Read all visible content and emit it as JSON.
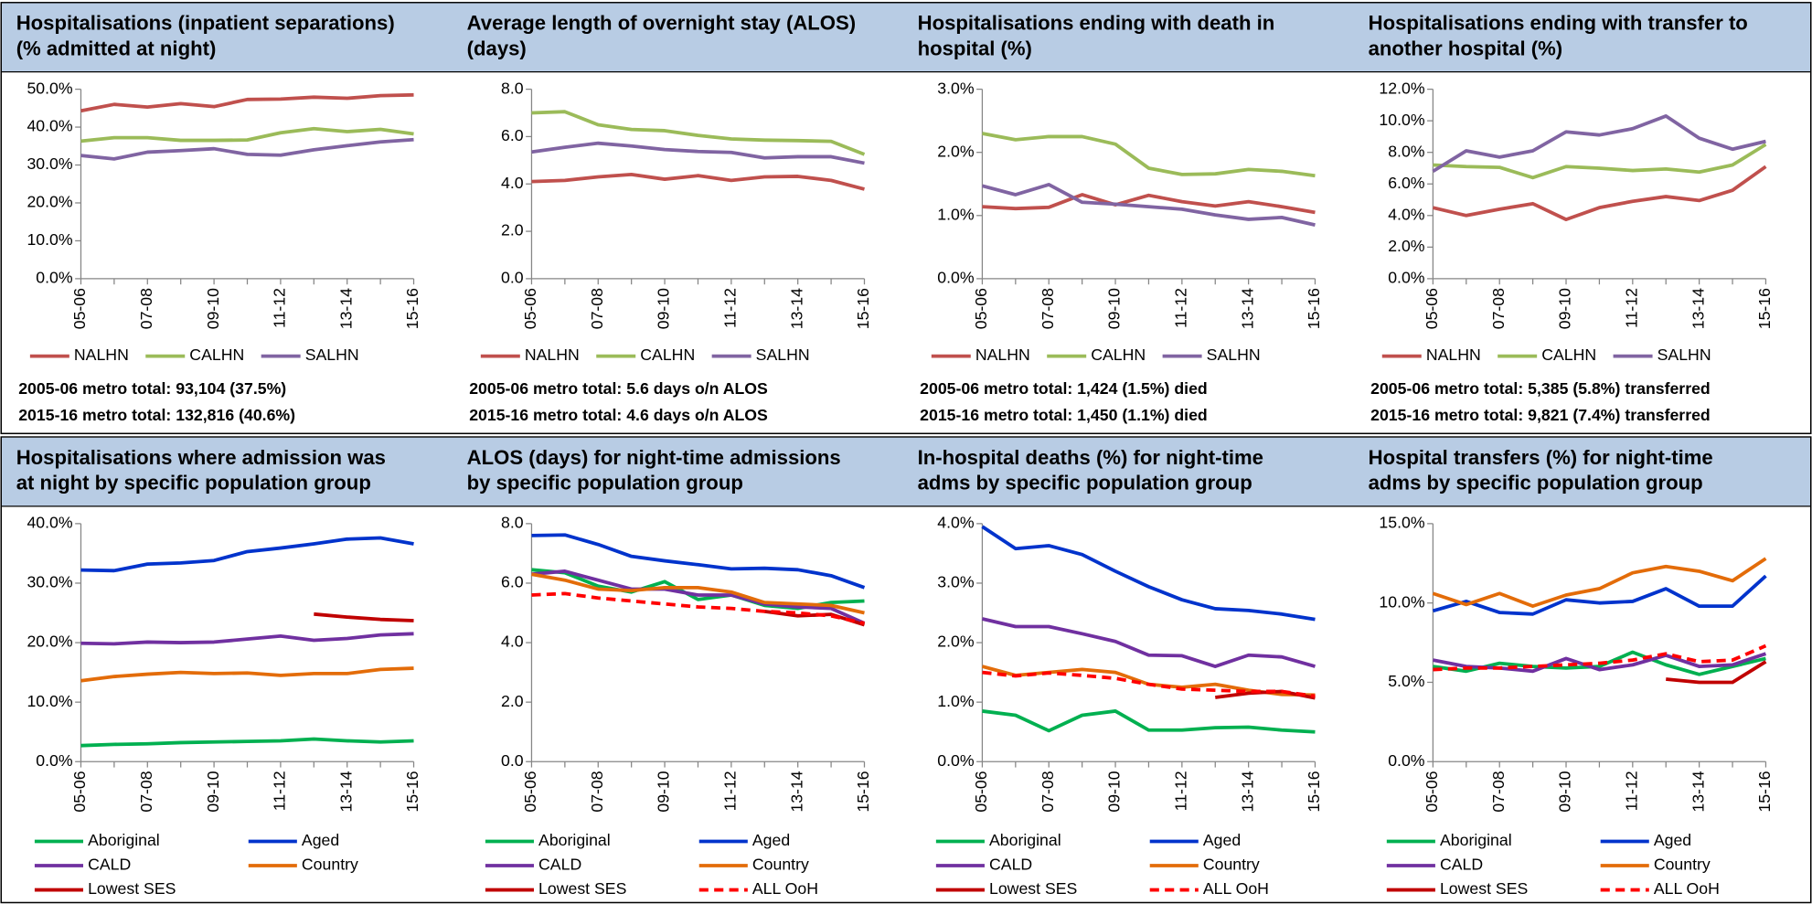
{
  "chart_data": [
    {
      "type": "line",
      "title": [
        "Hospitalisations (inpatient separations)",
        "(% admitted at night)"
      ],
      "categories": [
        "05-06",
        null,
        "07-08",
        null,
        "09-10",
        null,
        "11-12",
        null,
        "13-14",
        null,
        "15-16"
      ],
      "series": [
        {
          "name": "NALHN",
          "color": "#c0504d",
          "values": [
            44.3,
            46.0,
            45.3,
            46.2,
            45.4,
            47.3,
            47.4,
            47.9,
            47.6,
            48.3,
            48.5
          ]
        },
        {
          "name": "CALHN",
          "color": "#9bbb59",
          "values": [
            36.3,
            37.2,
            37.2,
            36.5,
            36.5,
            36.6,
            38.5,
            39.6,
            38.8,
            39.4,
            38.2
          ]
        },
        {
          "name": "SALHN",
          "color": "#8064a2",
          "values": [
            32.5,
            31.6,
            33.4,
            33.8,
            34.3,
            32.8,
            32.6,
            34.0,
            35.1,
            36.1,
            36.7
          ]
        }
      ],
      "ylim": [
        0,
        50
      ],
      "yticks": [
        {
          "value": 0,
          "label": "0.0%"
        },
        {
          "value": 10,
          "label": "10.0%"
        },
        {
          "value": 20,
          "label": "20.0%"
        },
        {
          "value": 30,
          "label": "30.0%"
        },
        {
          "value": 40,
          "label": "40.0%"
        },
        {
          "value": 50,
          "label": "50.0%"
        }
      ],
      "legend": "bottom",
      "notes": [
        "2005-06 metro total: 93,104 (37.5%)",
        "2015-16 metro total: 132,816 (40.6%)"
      ]
    },
    {
      "type": "line",
      "title": [
        "Average length of overnight stay (ALOS)",
        "(days)"
      ],
      "categories": [
        "05-06",
        null,
        "07-08",
        null,
        "09-10",
        null,
        "11-12",
        null,
        "13-14",
        null,
        "15-16"
      ],
      "series": [
        {
          "name": "NALHN",
          "color": "#c0504d",
          "values": [
            4.1,
            4.15,
            4.3,
            4.4,
            4.2,
            4.35,
            4.15,
            4.3,
            4.32,
            4.15,
            3.78
          ]
        },
        {
          "name": "CALHN",
          "color": "#9bbb59",
          "values": [
            7.0,
            7.05,
            6.5,
            6.3,
            6.25,
            6.05,
            5.9,
            5.85,
            5.83,
            5.8,
            5.25
          ]
        },
        {
          "name": "SALHN",
          "color": "#8064a2",
          "values": [
            5.35,
            5.55,
            5.72,
            5.6,
            5.45,
            5.37,
            5.33,
            5.1,
            5.15,
            5.15,
            4.88
          ]
        }
      ],
      "ylim": [
        0,
        8
      ],
      "yticks": [
        {
          "value": 0,
          "label": "0.0"
        },
        {
          "value": 2,
          "label": "2.0"
        },
        {
          "value": 4,
          "label": "4.0"
        },
        {
          "value": 6,
          "label": "6.0"
        },
        {
          "value": 8,
          "label": "8.0"
        }
      ],
      "legend": "bottom",
      "notes": [
        "2005-06 metro total: 5.6 days o/n ALOS",
        "2015-16 metro total: 4.6 days o/n ALOS"
      ]
    },
    {
      "type": "line",
      "title": [
        "Hospitalisations ending with death in",
        "hospital (%)"
      ],
      "categories": [
        "05-06",
        null,
        "07-08",
        null,
        "09-10",
        null,
        "11-12",
        null,
        "13-14",
        null,
        "15-16"
      ],
      "series": [
        {
          "name": "NALHN",
          "color": "#c0504d",
          "values": [
            1.14,
            1.11,
            1.13,
            1.33,
            1.17,
            1.32,
            1.22,
            1.15,
            1.22,
            1.14,
            1.05
          ]
        },
        {
          "name": "CALHN",
          "color": "#9bbb59",
          "values": [
            2.3,
            2.2,
            2.25,
            2.25,
            2.13,
            1.75,
            1.65,
            1.66,
            1.73,
            1.7,
            1.63
          ]
        },
        {
          "name": "SALHN",
          "color": "#8064a2",
          "values": [
            1.47,
            1.33,
            1.49,
            1.21,
            1.18,
            1.14,
            1.1,
            1.01,
            0.94,
            0.97,
            0.85
          ]
        }
      ],
      "ylim": [
        0,
        3
      ],
      "yticks": [
        {
          "value": 0,
          "label": "0.0%"
        },
        {
          "value": 1,
          "label": "1.0%"
        },
        {
          "value": 2,
          "label": "2.0%"
        },
        {
          "value": 3,
          "label": "3.0%"
        }
      ],
      "legend": "bottom",
      "notes": [
        "2005-06 metro total: 1,424 (1.5%) died",
        "2015-16 metro total: 1,450 (1.1%) died"
      ]
    },
    {
      "type": "line",
      "title": [
        "Hospitalisations ending with transfer to",
        "another hospital (%)"
      ],
      "categories": [
        "05-06",
        null,
        "07-08",
        null,
        "09-10",
        null,
        "11-12",
        null,
        "13-14",
        null,
        "15-16"
      ],
      "series": [
        {
          "name": "NALHN",
          "color": "#c0504d",
          "values": [
            4.5,
            4.0,
            4.4,
            4.75,
            3.75,
            4.5,
            4.9,
            5.2,
            4.95,
            5.6,
            7.1
          ]
        },
        {
          "name": "CALHN",
          "color": "#9bbb59",
          "values": [
            7.2,
            7.1,
            7.05,
            6.4,
            7.1,
            7.0,
            6.85,
            6.95,
            6.75,
            7.2,
            8.5
          ]
        },
        {
          "name": "SALHN",
          "color": "#8064a2",
          "values": [
            6.8,
            8.1,
            7.7,
            8.1,
            9.3,
            9.1,
            9.5,
            10.3,
            8.9,
            8.2,
            8.7
          ]
        }
      ],
      "ylim": [
        0,
        12
      ],
      "yticks": [
        {
          "value": 0,
          "label": "0.0%"
        },
        {
          "value": 2,
          "label": "2.0%"
        },
        {
          "value": 4,
          "label": "4.0%"
        },
        {
          "value": 6,
          "label": "6.0%"
        },
        {
          "value": 8,
          "label": "8.0%"
        },
        {
          "value": 10,
          "label": "10.0%"
        },
        {
          "value": 12,
          "label": "12.0%"
        }
      ],
      "legend": "bottom",
      "notes": [
        "2005-06 metro total: 5,385 (5.8%) transferred",
        "2015-16 metro total: 9,821 (7.4%) transferred"
      ]
    },
    {
      "type": "line",
      "title": [
        "Hospitalisations where admission was",
        "at night by specific population group"
      ],
      "categories": [
        "05-06",
        null,
        "07-08",
        null,
        "09-10",
        null,
        "11-12",
        null,
        "13-14",
        null,
        "15-16"
      ],
      "series": [
        {
          "name": "Aboriginal",
          "color": "#00b050",
          "values": [
            2.7,
            2.9,
            3.0,
            3.2,
            3.3,
            3.4,
            3.5,
            3.8,
            3.5,
            3.3,
            3.5
          ]
        },
        {
          "name": "Aged",
          "color": "#0033cc",
          "values": [
            32.2,
            32.1,
            33.2,
            33.4,
            33.8,
            35.3,
            35.9,
            36.6,
            37.4,
            37.6,
            36.6
          ]
        },
        {
          "name": "CALD",
          "color": "#7030a0",
          "values": [
            19.9,
            19.8,
            20.1,
            20.0,
            20.1,
            20.6,
            21.1,
            20.4,
            20.7,
            21.3,
            21.5
          ]
        },
        {
          "name": "Country",
          "color": "#e36c09",
          "values": [
            13.6,
            14.3,
            14.7,
            15.0,
            14.8,
            14.9,
            14.5,
            14.8,
            14.8,
            15.5,
            15.7
          ]
        },
        {
          "name": "Lowest SES",
          "color": "#c00000",
          "values": [
            null,
            null,
            null,
            null,
            null,
            null,
            null,
            24.8,
            24.3,
            23.9,
            23.7
          ]
        }
      ],
      "ylim": [
        0,
        40
      ],
      "yticks": [
        {
          "value": 0,
          "label": "0.0%"
        },
        {
          "value": 10,
          "label": "10.0%"
        },
        {
          "value": 20,
          "label": "20.0%"
        },
        {
          "value": 30,
          "label": "30.0%"
        },
        {
          "value": 40,
          "label": "40.0%"
        }
      ],
      "legend": "bottom"
    },
    {
      "type": "line",
      "title": [
        "ALOS (days) for night-time admissions",
        "by specific population group"
      ],
      "categories": [
        "05-06",
        null,
        "07-08",
        null,
        "09-10",
        null,
        "11-12",
        null,
        "13-14",
        null,
        "15-16"
      ],
      "series": [
        {
          "name": "Aboriginal",
          "color": "#00b050",
          "values": [
            6.45,
            6.35,
            5.9,
            5.7,
            6.05,
            5.45,
            5.6,
            5.25,
            5.15,
            5.35,
            5.4
          ]
        },
        {
          "name": "Aged",
          "color": "#0033cc",
          "values": [
            7.6,
            7.62,
            7.3,
            6.9,
            6.75,
            6.62,
            6.48,
            6.5,
            6.45,
            6.25,
            5.85
          ]
        },
        {
          "name": "CALD",
          "color": "#7030a0",
          "values": [
            6.3,
            6.4,
            6.1,
            5.8,
            5.8,
            5.6,
            5.6,
            5.3,
            5.2,
            5.15,
            4.65
          ]
        },
        {
          "name": "Country",
          "color": "#e36c09",
          "values": [
            6.3,
            6.1,
            5.8,
            5.75,
            5.85,
            5.85,
            5.7,
            5.35,
            5.3,
            5.25,
            5.0
          ]
        },
        {
          "name": "Lowest SES",
          "color": "#c00000",
          "values": [
            null,
            null,
            null,
            null,
            null,
            null,
            null,
            5.05,
            4.9,
            4.95,
            4.6
          ]
        },
        {
          "name": "ALL OoH",
          "color": "#ff0000",
          "dashed": true,
          "values": [
            5.6,
            5.65,
            5.5,
            5.4,
            5.3,
            5.2,
            5.15,
            5.05,
            5.0,
            4.9,
            4.65
          ]
        }
      ],
      "ylim": [
        0,
        8
      ],
      "yticks": [
        {
          "value": 0,
          "label": "0.0"
        },
        {
          "value": 2,
          "label": "2.0"
        },
        {
          "value": 4,
          "label": "4.0"
        },
        {
          "value": 6,
          "label": "6.0"
        },
        {
          "value": 8,
          "label": "8.0"
        }
      ],
      "legend": "bottom"
    },
    {
      "type": "line",
      "title": [
        "In-hospital deaths (%) for night-time",
        "adms by specific population group"
      ],
      "categories": [
        "05-06",
        null,
        "07-08",
        null,
        "09-10",
        null,
        "11-12",
        null,
        "13-14",
        null,
        "15-16"
      ],
      "series": [
        {
          "name": "Aboriginal",
          "color": "#00b050",
          "values": [
            0.85,
            0.78,
            0.52,
            0.78,
            0.85,
            0.53,
            0.53,
            0.57,
            0.58,
            0.53,
            0.5
          ]
        },
        {
          "name": "Aged",
          "color": "#0033cc",
          "values": [
            3.95,
            3.58,
            3.63,
            3.48,
            3.2,
            2.94,
            2.72,
            2.57,
            2.54,
            2.48,
            2.39
          ]
        },
        {
          "name": "CALD",
          "color": "#7030a0",
          "values": [
            2.4,
            2.27,
            2.27,
            2.15,
            2.02,
            1.79,
            1.78,
            1.6,
            1.79,
            1.76,
            1.6
          ]
        },
        {
          "name": "Country",
          "color": "#e36c09",
          "values": [
            1.6,
            1.45,
            1.5,
            1.55,
            1.5,
            1.3,
            1.25,
            1.3,
            1.2,
            1.13,
            1.12
          ]
        },
        {
          "name": "Lowest SES",
          "color": "#c00000",
          "values": [
            null,
            null,
            null,
            null,
            null,
            null,
            null,
            1.08,
            1.15,
            1.18,
            1.07
          ]
        },
        {
          "name": "ALL OoH",
          "color": "#ff0000",
          "dashed": true,
          "values": [
            1.5,
            1.44,
            1.49,
            1.45,
            1.4,
            1.3,
            1.22,
            1.2,
            1.18,
            1.18,
            1.1
          ]
        }
      ],
      "ylim": [
        0,
        4
      ],
      "yticks": [
        {
          "value": 0,
          "label": "0.0%"
        },
        {
          "value": 1,
          "label": "1.0%"
        },
        {
          "value": 2,
          "label": "2.0%"
        },
        {
          "value": 3,
          "label": "3.0%"
        },
        {
          "value": 4,
          "label": "4.0%"
        }
      ],
      "legend": "bottom"
    },
    {
      "type": "line",
      "title": [
        "Hospital transfers (%) for night-time",
        "adms by specific population group"
      ],
      "categories": [
        "05-06",
        null,
        "07-08",
        null,
        "09-10",
        null,
        "11-12",
        null,
        "13-14",
        null,
        "15-16"
      ],
      "series": [
        {
          "name": "Aboriginal",
          "color": "#00b050",
          "values": [
            6.0,
            5.7,
            6.2,
            6.0,
            5.9,
            6.0,
            6.9,
            6.1,
            5.5,
            6.0,
            6.5
          ]
        },
        {
          "name": "Aged",
          "color": "#0033cc",
          "values": [
            9.5,
            10.1,
            9.4,
            9.3,
            10.2,
            10.0,
            10.1,
            10.9,
            9.8,
            9.8,
            11.7
          ]
        },
        {
          "name": "CALD",
          "color": "#7030a0",
          "values": [
            6.4,
            6.0,
            5.9,
            5.7,
            6.5,
            5.8,
            6.1,
            6.7,
            6.0,
            6.1,
            6.8
          ]
        },
        {
          "name": "Country",
          "color": "#e36c09",
          "values": [
            10.6,
            9.9,
            10.6,
            9.8,
            10.5,
            10.9,
            11.9,
            12.3,
            12.0,
            11.4,
            12.8
          ]
        },
        {
          "name": "Lowest SES",
          "color": "#c00000",
          "values": [
            null,
            null,
            null,
            null,
            null,
            null,
            null,
            5.2,
            5.0,
            5.0,
            6.3
          ]
        },
        {
          "name": "ALL OoH",
          "color": "#ff0000",
          "dashed": true,
          "values": [
            5.8,
            5.9,
            5.9,
            6.0,
            6.1,
            6.2,
            6.4,
            6.8,
            6.3,
            6.4,
            7.3
          ]
        }
      ],
      "ylim": [
        0,
        15
      ],
      "yticks": [
        {
          "value": 0,
          "label": "0.0%"
        },
        {
          "value": 5,
          "label": "5.0%"
        },
        {
          "value": 10,
          "label": "10.0%"
        },
        {
          "value": 15,
          "label": "15.0%"
        }
      ],
      "legend": "bottom"
    }
  ]
}
